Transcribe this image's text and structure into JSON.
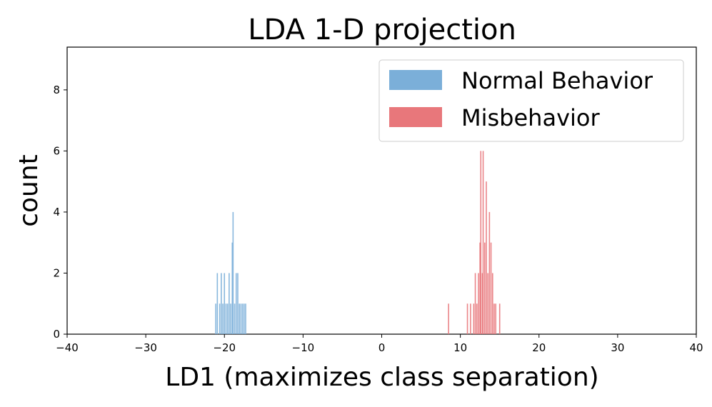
{
  "chart_data": {
    "type": "histogram",
    "title": "LDA 1-D projection",
    "xlabel": "LD1 (maximizes class separation)",
    "ylabel": "count",
    "xlim": [
      -40,
      40
    ],
    "ylim": [
      0,
      9.4
    ],
    "xticks": [
      -40,
      -30,
      -20,
      -10,
      0,
      10,
      20,
      30,
      40
    ],
    "xtick_labels": [
      "−40",
      "−30",
      "−20",
      "−10",
      "0",
      "10",
      "20",
      "30",
      "40"
    ],
    "yticks": [
      0,
      2,
      4,
      6,
      8
    ],
    "ytick_labels": [
      "0",
      "2",
      "4",
      "6",
      "8"
    ],
    "grid": false,
    "legend_position": "top-right",
    "series": [
      {
        "name": "Normal Behavior",
        "color": "#7bafd9",
        "bins": [
          {
            "x": -21.1,
            "count": 1
          },
          {
            "x": -20.9,
            "count": 2
          },
          {
            "x": -20.6,
            "count": 1
          },
          {
            "x": -20.4,
            "count": 2
          },
          {
            "x": -20.2,
            "count": 1
          },
          {
            "x": -20.0,
            "count": 2
          },
          {
            "x": -19.8,
            "count": 1
          },
          {
            "x": -19.6,
            "count": 1
          },
          {
            "x": -19.4,
            "count": 2
          },
          {
            "x": -19.2,
            "count": 1
          },
          {
            "x": -19.0,
            "count": 3
          },
          {
            "x": -18.9,
            "count": 4
          },
          {
            "x": -18.7,
            "count": 1
          },
          {
            "x": -18.5,
            "count": 2
          },
          {
            "x": -18.3,
            "count": 2
          },
          {
            "x": -18.1,
            "count": 1
          },
          {
            "x": -17.9,
            "count": 1
          },
          {
            "x": -17.7,
            "count": 1
          },
          {
            "x": -17.5,
            "count": 1
          },
          {
            "x": -17.3,
            "count": 1
          }
        ]
      },
      {
        "name": "Misbehavior",
        "color": "#e8777b",
        "bins": [
          {
            "x": 8.5,
            "count": 1
          },
          {
            "x": 10.9,
            "count": 1
          },
          {
            "x": 11.3,
            "count": 1
          },
          {
            "x": 11.7,
            "count": 1
          },
          {
            "x": 11.9,
            "count": 2
          },
          {
            "x": 12.1,
            "count": 1
          },
          {
            "x": 12.3,
            "count": 2
          },
          {
            "x": 12.5,
            "count": 3
          },
          {
            "x": 12.6,
            "count": 6
          },
          {
            "x": 12.8,
            "count": 2
          },
          {
            "x": 12.9,
            "count": 6
          },
          {
            "x": 13.1,
            "count": 3
          },
          {
            "x": 13.3,
            "count": 5
          },
          {
            "x": 13.5,
            "count": 2
          },
          {
            "x": 13.7,
            "count": 4
          },
          {
            "x": 13.9,
            "count": 3
          },
          {
            "x": 14.1,
            "count": 2
          },
          {
            "x": 14.3,
            "count": 1
          },
          {
            "x": 14.5,
            "count": 1
          },
          {
            "x": 15.0,
            "count": 1
          }
        ]
      }
    ]
  }
}
